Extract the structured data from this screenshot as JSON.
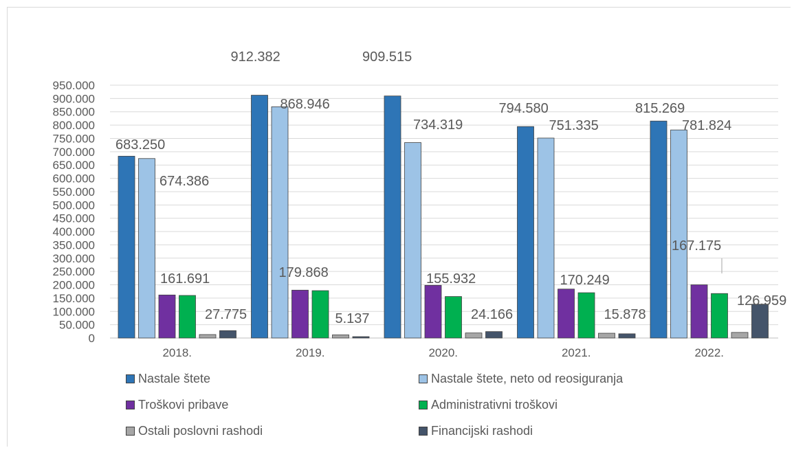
{
  "chart_data": {
    "type": "bar",
    "categories": [
      "2018.",
      "2019.",
      "2020.",
      "2021.",
      "2022."
    ],
    "series": [
      {
        "name": "Nastale štete",
        "color": "#2e75b6",
        "values": [
          683250,
          912382,
          909515,
          794580,
          815269
        ]
      },
      {
        "name": "Nastale štete, neto od reosiguranja",
        "color": "#9dc3e6",
        "values": [
          674386,
          868946,
          734319,
          751335,
          781824
        ]
      },
      {
        "name": "Troškovi pribave",
        "color": "#7030a0",
        "values": [
          161691,
          179868,
          198000,
          184000,
          200000
        ]
      },
      {
        "name": "Administrativni troškovi",
        "color": "#00b050",
        "values": [
          160000,
          178000,
          155932,
          170249,
          167175
        ]
      },
      {
        "name": "Ostali poslovni rashodi",
        "color": "#a6a6a6",
        "values": [
          13000,
          12000,
          19000,
          18000,
          21000
        ]
      },
      {
        "name": "Financijski rashodi",
        "color": "#44546a",
        "values": [
          27775,
          5137,
          24166,
          15878,
          126959
        ]
      }
    ],
    "data_labels": [
      {
        "category": 0,
        "text": "683.250"
      },
      {
        "category": 0,
        "text": "674.386"
      },
      {
        "category": 0,
        "text": "161.691"
      },
      {
        "category": 0,
        "text": "27.775"
      },
      {
        "category": 1,
        "text": "912.382"
      },
      {
        "category": 1,
        "text": "868.946"
      },
      {
        "category": 1,
        "text": "179.868"
      },
      {
        "category": 1,
        "text": "5.137"
      },
      {
        "category": 2,
        "text": "909.515"
      },
      {
        "category": 2,
        "text": "734.319"
      },
      {
        "category": 2,
        "text": "155.932"
      },
      {
        "category": 2,
        "text": "24.166"
      },
      {
        "category": 3,
        "text": "794.580"
      },
      {
        "category": 3,
        "text": "751.335"
      },
      {
        "category": 3,
        "text": "170.249"
      },
      {
        "category": 3,
        "text": "15.878"
      },
      {
        "category": 4,
        "text": "815.269"
      },
      {
        "category": 4,
        "text": "781.824"
      },
      {
        "category": 4,
        "text": "167.175"
      },
      {
        "category": 4,
        "text": "126.959"
      }
    ],
    "y_ticks": [
      "0",
      "50.000",
      "100.000",
      "150.000",
      "200.000",
      "250.000",
      "300.000",
      "350.000",
      "400.000",
      "450.000",
      "500.000",
      "550.000",
      "600.000",
      "650.000",
      "700.000",
      "750.000",
      "800.000",
      "850.000",
      "900.000",
      "950.000"
    ],
    "ylim": [
      0,
      950000
    ],
    "grid": true,
    "legend_position": "bottom"
  }
}
